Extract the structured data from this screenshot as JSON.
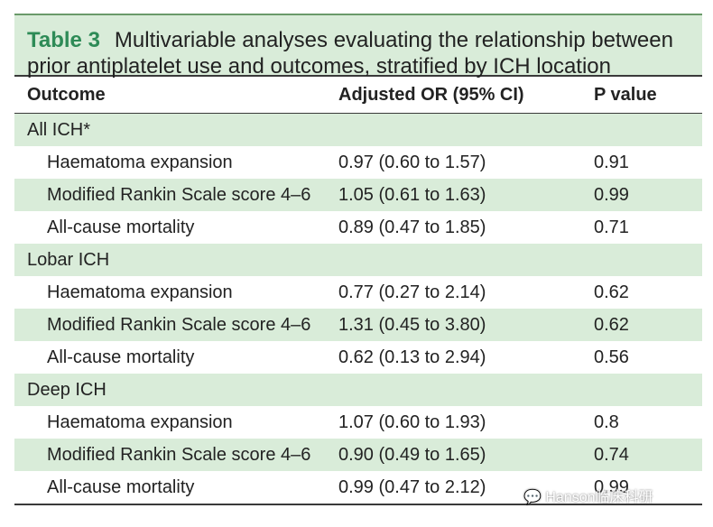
{
  "table": {
    "label": "Table 3",
    "title_line1": "Multivariable analyses evaluating the relationship between",
    "title_line2": "prior antiplatelet use and outcomes, stratified by ICH location",
    "headers": [
      "Outcome",
      "Adjusted OR (95% CI)",
      "P value"
    ],
    "groups": [
      {
        "name": "All ICH*",
        "rows": [
          {
            "outcome": "Haematoma expansion",
            "or": "0.97 (0.60 to 1.57)",
            "p": "0.91"
          },
          {
            "outcome": "Modified Rankin Scale score 4–6",
            "or": "1.05 (0.61 to 1.63)",
            "p": "0.99"
          },
          {
            "outcome": "All-cause mortality",
            "or": "0.89 (0.47 to 1.85)",
            "p": "0.71"
          }
        ]
      },
      {
        "name": "Lobar ICH",
        "rows": [
          {
            "outcome": "Haematoma expansion",
            "or": "0.77 (0.27 to 2.14)",
            "p": "0.62"
          },
          {
            "outcome": "Modified Rankin Scale score 4–6",
            "or": "1.31 (0.45 to 3.80)",
            "p": "0.62"
          },
          {
            "outcome": "All-cause mortality",
            "or": "0.62 (0.13 to 2.94)",
            "p": "0.56"
          }
        ]
      },
      {
        "name": "Deep ICH",
        "rows": [
          {
            "outcome": "Haematoma expansion",
            "or": "1.07 (0.60 to 1.93)",
            "p": "0.8"
          },
          {
            "outcome": "Modified Rankin Scale score 4–6",
            "or": "0.90 (0.49 to 1.65)",
            "p": "0.74"
          },
          {
            "outcome": "All-cause mortality",
            "or": "0.99 (0.47 to 2.12)",
            "p": "0.99"
          }
        ]
      }
    ]
  },
  "watermark": "Hanson临床科研"
}
